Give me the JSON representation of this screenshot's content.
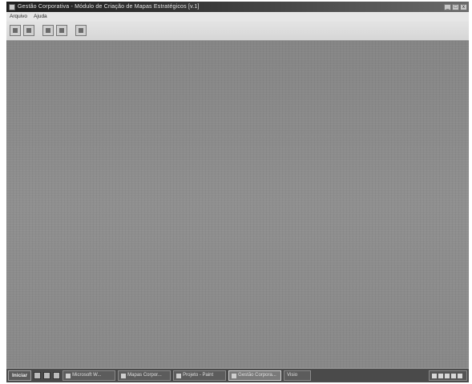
{
  "window": {
    "title": "Gestão Corporativa - Módulo de Criação de Mapas Estratégicos [v.1]",
    "minimize_label": "_",
    "maximize_label": "□",
    "close_label": "x"
  },
  "menu": {
    "items": [
      {
        "label": "Arquivo"
      },
      {
        "label": "Ajuda"
      }
    ]
  },
  "toolbar": {
    "buttons": [
      {
        "icon": "new-map-icon"
      },
      {
        "icon": "open-icon"
      },
      {
        "icon": "save-icon"
      },
      {
        "icon": "print-icon"
      },
      {
        "icon": "exit-icon"
      }
    ]
  },
  "taskbar": {
    "start_label": "Iniciar",
    "tasks": [
      {
        "label": "Microsoft W..."
      },
      {
        "label": "Mapas Corpor..."
      },
      {
        "label": "Projeto - Paint"
      },
      {
        "label": "Gestão Corpora..."
      },
      {
        "label": "Visio"
      }
    ],
    "clock": ""
  }
}
